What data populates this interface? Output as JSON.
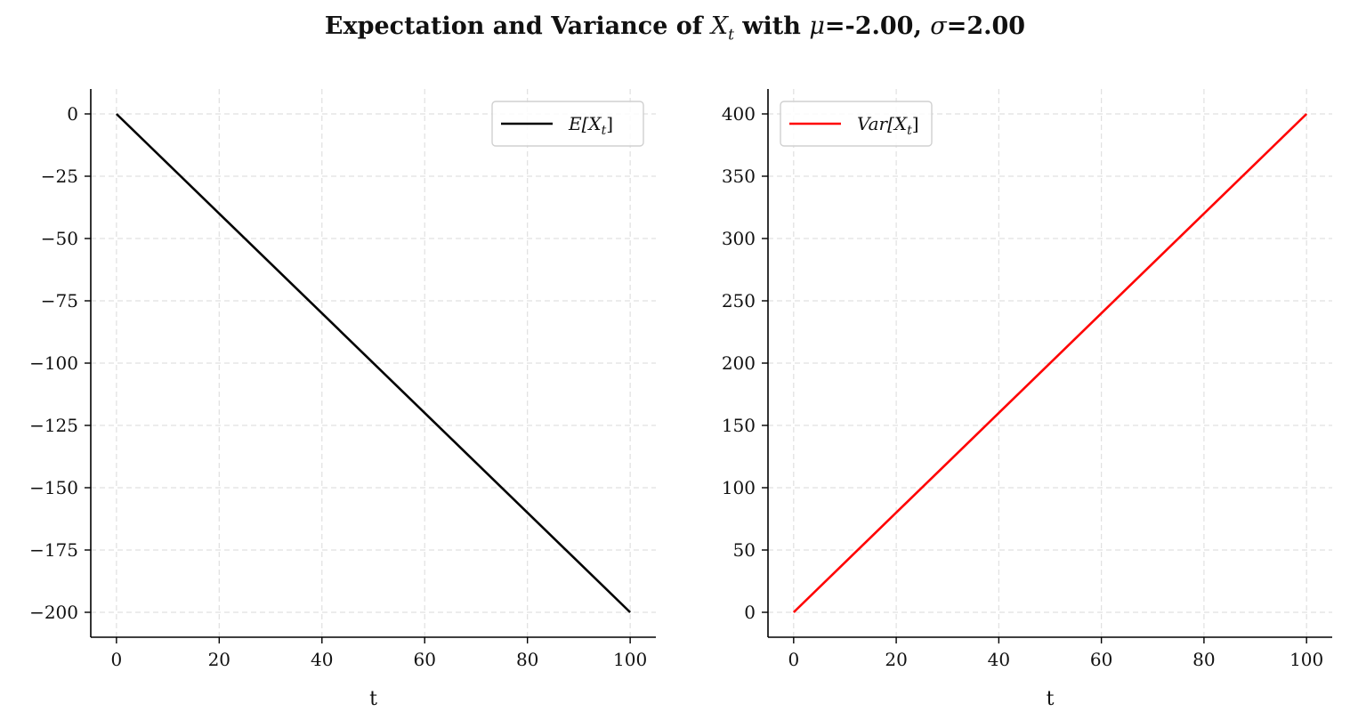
{
  "title": {
    "prefix": "Expectation and Variance of ",
    "x_symbol": "X",
    "x_subscript": "t",
    "mid": " with ",
    "mu_symbol": "μ",
    "mu_value": "=-2.00, ",
    "sigma_symbol": "σ",
    "sigma_value": "=2.00"
  },
  "chart_data": [
    {
      "type": "line",
      "xlabel": "t",
      "ylabel": "",
      "xlim": [
        -5,
        105
      ],
      "ylim": [
        -210,
        10
      ],
      "xticks": [
        0,
        20,
        40,
        60,
        80,
        100
      ],
      "yticks": [
        0,
        -25,
        -50,
        -75,
        -100,
        -125,
        -150,
        -175,
        -200
      ],
      "ytick_labels": [
        "0",
        "−25",
        "−50",
        "−75",
        "−100",
        "−125",
        "−150",
        "−175",
        "−200"
      ],
      "grid": true,
      "legend_position": "top-right",
      "series": [
        {
          "name": "E[X_t]",
          "legend_main": "E[X",
          "legend_sub": "t",
          "legend_close": "]",
          "color": "#000000",
          "x": [
            0,
            100
          ],
          "y": [
            0,
            -200
          ]
        }
      ]
    },
    {
      "type": "line",
      "xlabel": "t",
      "ylabel": "",
      "xlim": [
        -5,
        105
      ],
      "ylim": [
        -20,
        420
      ],
      "xticks": [
        0,
        20,
        40,
        60,
        80,
        100
      ],
      "yticks": [
        0,
        50,
        100,
        150,
        200,
        250,
        300,
        350,
        400
      ],
      "ytick_labels": [
        "0",
        "50",
        "100",
        "150",
        "200",
        "250",
        "300",
        "350",
        "400"
      ],
      "grid": true,
      "legend_position": "top-left",
      "series": [
        {
          "name": "Var[X_t]",
          "legend_main": "Var[X",
          "legend_sub": "t",
          "legend_close": "]",
          "color": "#ff0000",
          "x": [
            0,
            100
          ],
          "y": [
            0,
            400
          ]
        }
      ]
    }
  ]
}
